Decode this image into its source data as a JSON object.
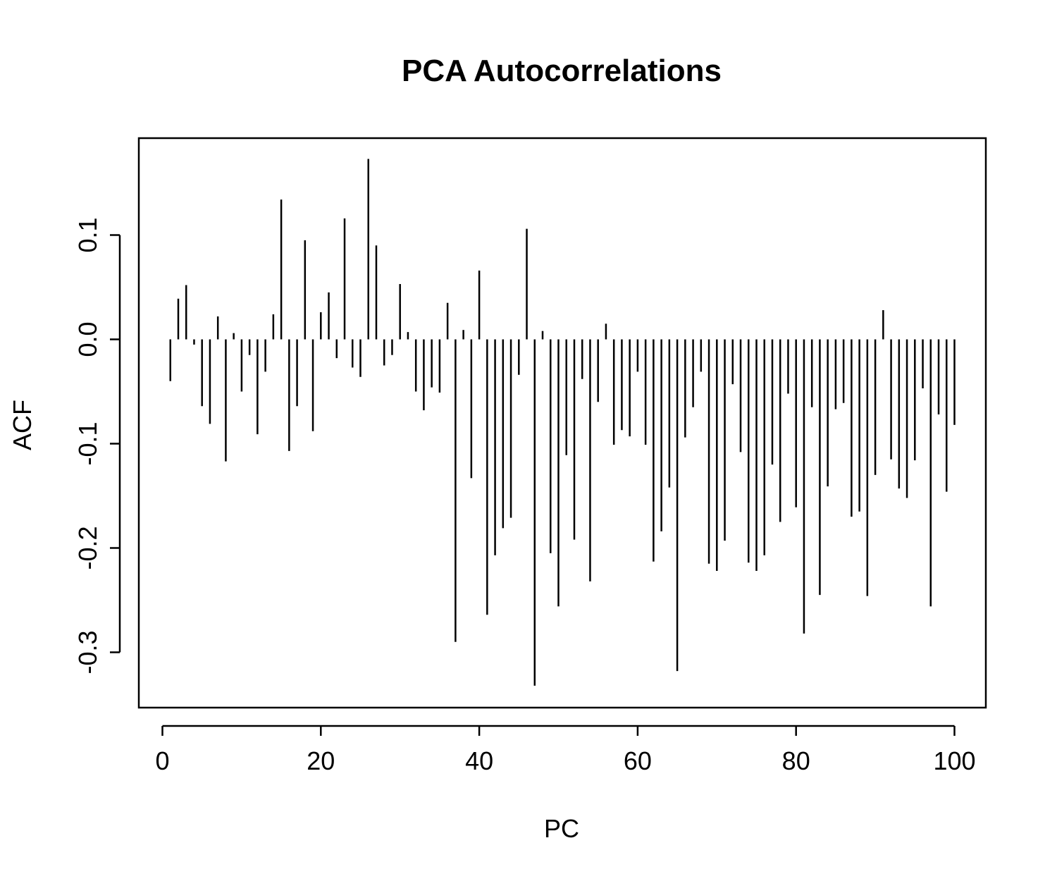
{
  "chart_data": {
    "type": "bar",
    "style": "vertical-spikes",
    "title": "PCA Autocorrelations",
    "xlabel": "PC",
    "ylabel": "ACF",
    "xlim": [
      0,
      100
    ],
    "ylim": [
      -0.35,
      0.18
    ],
    "xticks": [
      0,
      20,
      40,
      60,
      80,
      100
    ],
    "xtick_labels": [
      "0",
      "20",
      "40",
      "60",
      "80",
      "100"
    ],
    "yticks": [
      -0.3,
      -0.2,
      -0.1,
      0.0,
      0.1
    ],
    "ytick_labels": [
      "-0.3",
      "-0.2",
      "-0.1",
      "0.0",
      "0.1"
    ],
    "grid": false,
    "legend": "none",
    "color": "#000000",
    "x": [
      1,
      2,
      3,
      4,
      5,
      6,
      7,
      8,
      9,
      10,
      11,
      12,
      13,
      14,
      15,
      16,
      17,
      18,
      19,
      20,
      21,
      22,
      23,
      24,
      25,
      26,
      27,
      28,
      29,
      30,
      31,
      32,
      33,
      34,
      35,
      36,
      37,
      38,
      39,
      40,
      41,
      42,
      43,
      44,
      45,
      46,
      47,
      48,
      49,
      50,
      51,
      52,
      53,
      54,
      55,
      56,
      57,
      58,
      59,
      60,
      61,
      62,
      63,
      64,
      65,
      66,
      67,
      68,
      69,
      70,
      71,
      72,
      73,
      74,
      75,
      76,
      77,
      78,
      79,
      80,
      81,
      82,
      83,
      84,
      85,
      86,
      87,
      88,
      89,
      90,
      91,
      92,
      93,
      94,
      95,
      96,
      97,
      98,
      99,
      100
    ],
    "values": [
      -0.04,
      0.039,
      0.052,
      -0.005,
      -0.064,
      -0.081,
      0.022,
      -0.117,
      0.006,
      -0.05,
      -0.015,
      -0.091,
      -0.031,
      0.024,
      0.134,
      -0.107,
      -0.064,
      0.095,
      -0.088,
      0.026,
      0.045,
      -0.018,
      0.116,
      -0.027,
      -0.036,
      0.173,
      0.09,
      -0.025,
      -0.015,
      0.053,
      0.007,
      -0.05,
      -0.068,
      -0.046,
      -0.051,
      0.035,
      -0.29,
      0.009,
      -0.133,
      0.066,
      -0.264,
      -0.207,
      -0.181,
      -0.171,
      -0.034,
      0.106,
      -0.332,
      0.008,
      -0.205,
      -0.256,
      -0.111,
      -0.192,
      -0.038,
      -0.232,
      -0.06,
      0.015,
      -0.101,
      -0.087,
      -0.093,
      -0.031,
      -0.101,
      -0.213,
      -0.184,
      -0.142,
      -0.318,
      -0.094,
      -0.065,
      -0.031,
      -0.215,
      -0.222,
      -0.193,
      -0.043,
      -0.108,
      -0.214,
      -0.222,
      -0.207,
      -0.12,
      -0.175,
      -0.052,
      -0.161,
      -0.282,
      -0.065,
      -0.245,
      -0.141,
      -0.067,
      -0.061,
      -0.17,
      -0.165,
      -0.246,
      -0.13,
      0.028,
      -0.115,
      -0.143,
      -0.152,
      -0.116,
      -0.047,
      -0.256,
      -0.072,
      -0.146,
      -0.082
    ]
  }
}
